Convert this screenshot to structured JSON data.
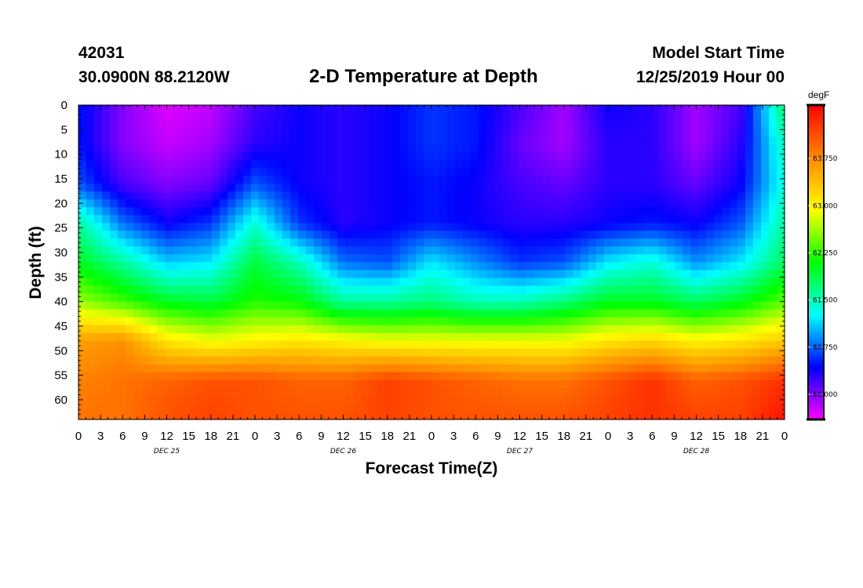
{
  "header": {
    "station_id": "42031",
    "coords": "30.0900N 88.2120W",
    "title": "2-D Temperature at Depth",
    "start_label": "Model Start Time",
    "start_value": "12/25/2019 Hour 00"
  },
  "chart_data": {
    "type": "heatmap",
    "title": "2-D Temperature at Depth",
    "xlabel": "Forecast Time(Z)",
    "ylabel": "Depth (ft)",
    "x_hours": [
      0,
      96
    ],
    "x_tick_labels": [
      "0",
      "3",
      "6",
      "9",
      "12",
      "15",
      "18",
      "21",
      "0",
      "3",
      "6",
      "9",
      "12",
      "15",
      "18",
      "21",
      "0",
      "3",
      "6",
      "9",
      "12",
      "15",
      "18",
      "21",
      "0",
      "3",
      "6",
      "9",
      "12",
      "15",
      "18",
      "21",
      "0"
    ],
    "day_labels": [
      "DEC 25",
      "DEC 26",
      "DEC 27",
      "DEC 28"
    ],
    "ylim": [
      0,
      64
    ],
    "y_ticks": [
      0,
      5,
      10,
      15,
      20,
      25,
      30,
      35,
      40,
      45,
      50,
      55,
      60
    ],
    "colorbar": {
      "unit": "degF",
      "range": [
        59.6,
        64.6
      ],
      "tick_values": [
        60.0,
        60.75,
        61.5,
        62.25,
        63.0,
        63.75
      ],
      "tick_labels": [
        "60.000",
        "60.750",
        "61.500",
        "62.250",
        "63.000",
        "63.750"
      ],
      "colors": [
        "#ff00ff",
        "#0000ff",
        "#00ffff",
        "#00ff00",
        "#ffff00",
        "#ff8800",
        "#ff0000"
      ]
    },
    "hours": [
      0,
      6,
      12,
      18,
      24,
      30,
      36,
      42,
      48,
      54,
      60,
      66,
      72,
      78,
      84,
      90,
      96
    ],
    "depths_ft": [
      0,
      8,
      16,
      24,
      32,
      40,
      48,
      56,
      64
    ],
    "temperature": [
      [
        60.5,
        60.0,
        59.7,
        59.8,
        60.2,
        60.4,
        60.3,
        60.4,
        60.6,
        60.5,
        60.2,
        59.9,
        60.4,
        60.3,
        59.9,
        60.2,
        61.8
      ],
      [
        60.5,
        60.0,
        59.8,
        59.9,
        60.3,
        60.4,
        60.3,
        60.4,
        60.6,
        60.5,
        60.1,
        59.9,
        60.3,
        60.3,
        59.9,
        60.3,
        61.5
      ],
      [
        60.7,
        60.2,
        60.0,
        60.1,
        60.7,
        60.4,
        60.3,
        60.4,
        60.5,
        60.4,
        60.2,
        60.1,
        60.3,
        60.3,
        60.1,
        60.4,
        61.4
      ],
      [
        61.6,
        60.8,
        60.4,
        60.6,
        61.4,
        60.6,
        60.3,
        60.4,
        60.5,
        60.4,
        60.3,
        60.3,
        60.4,
        60.5,
        60.4,
        60.7,
        61.6
      ],
      [
        62.0,
        61.6,
        61.1,
        61.2,
        61.9,
        61.5,
        60.8,
        60.7,
        61.2,
        60.9,
        60.6,
        60.7,
        61.2,
        61.4,
        60.9,
        61.2,
        61.8
      ],
      [
        62.6,
        62.3,
        62.0,
        61.9,
        62.2,
        62.1,
        61.6,
        61.6,
        61.7,
        61.5,
        61.5,
        61.7,
        62.0,
        62.0,
        61.8,
        62.0,
        62.4
      ],
      [
        63.6,
        63.7,
        63.1,
        62.9,
        63.0,
        63.1,
        63.0,
        62.9,
        62.9,
        62.9,
        62.9,
        62.9,
        63.1,
        63.2,
        63.0,
        63.1,
        63.3
      ],
      [
        63.8,
        63.9,
        64.0,
        64.1,
        64.1,
        64.0,
        64.0,
        64.2,
        64.1,
        64.0,
        63.9,
        63.9,
        64.1,
        64.3,
        64.0,
        64.1,
        64.3
      ],
      [
        63.9,
        63.9,
        64.1,
        64.2,
        64.1,
        64.1,
        64.1,
        64.2,
        64.1,
        64.1,
        64.1,
        64.1,
        64.2,
        64.3,
        64.2,
        64.2,
        64.5
      ]
    ]
  }
}
